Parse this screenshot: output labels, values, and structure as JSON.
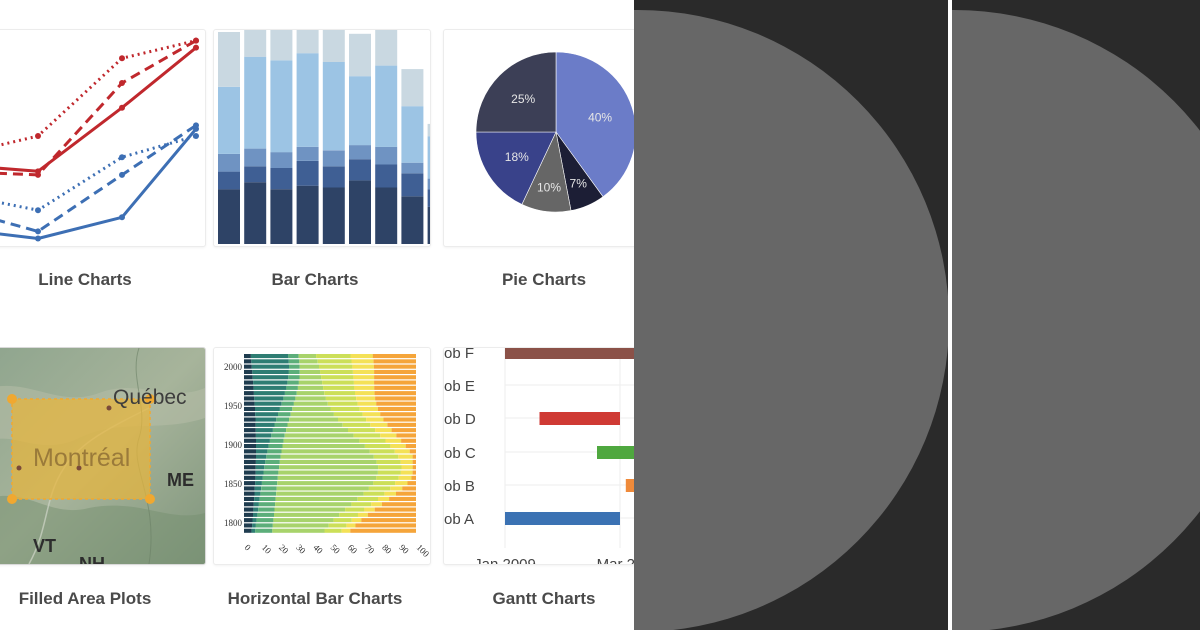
{
  "gallery": {
    "items": [
      {
        "label": "Line Charts"
      },
      {
        "label": "Bar Charts"
      },
      {
        "label": "Pie Charts"
      },
      {
        "label": "Filled Area Plots"
      },
      {
        "label": "Horizontal Bar Charts"
      },
      {
        "label": "Gantt Charts"
      }
    ]
  },
  "colors": {
    "red": "#c0282d",
    "blue": "#3d6fb4",
    "panel_bg": "#2a2a2a",
    "panel_disc": "#676767"
  },
  "chart_data": [
    {
      "type": "line",
      "x": [
        0,
        1,
        2,
        3
      ],
      "series": [
        {
          "name": "red-solid",
          "values": [
            22,
            20,
            38,
            55
          ]
        },
        {
          "name": "red-dash",
          "values": [
            20,
            19,
            45,
            57
          ]
        },
        {
          "name": "red-dot",
          "values": [
            24,
            30,
            52,
            57
          ]
        },
        {
          "name": "blue-solid",
          "values": [
            4,
            1,
            7,
            32
          ]
        },
        {
          "name": "blue-dash",
          "values": [
            10,
            3,
            19,
            33
          ]
        },
        {
          "name": "blue-dot",
          "values": [
            14,
            9,
            24,
            30
          ]
        }
      ],
      "ylim": [
        0,
        60
      ]
    },
    {
      "type": "bar",
      "categories": [
        "1",
        "2",
        "3",
        "4",
        "5",
        "6",
        "7",
        "8",
        "9"
      ],
      "series": [
        {
          "name": "s1",
          "values": [
            31,
            35,
            31,
            33,
            32,
            36,
            32,
            27,
            21
          ]
        },
        {
          "name": "s2",
          "values": [
            10,
            9,
            12,
            14,
            12,
            12,
            13,
            13,
            10
          ]
        },
        {
          "name": "s3",
          "values": [
            10,
            10,
            9,
            8,
            9,
            8,
            10,
            6,
            6
          ]
        },
        {
          "name": "s4",
          "values": [
            38,
            52,
            52,
            53,
            50,
            39,
            46,
            32,
            24
          ]
        },
        {
          "name": "s5",
          "values": [
            31,
            28,
            28,
            28,
            24,
            24,
            33,
            21,
            7
          ]
        }
      ],
      "ylim": [
        0,
        120
      ]
    },
    {
      "type": "pie",
      "labels": [
        "40%",
        "7%",
        "10%",
        "18%",
        "25%"
      ],
      "values": [
        40,
        7,
        10,
        18,
        25
      ]
    },
    {
      "type": "area",
      "place_labels": [
        "Québec",
        "Montréal",
        "ME",
        "VT",
        "NH"
      ]
    },
    {
      "type": "bar",
      "orientation": "horizontal",
      "y_ticks": [
        "2000",
        "1950",
        "1900",
        "1850",
        "1800"
      ],
      "x_ticks": [
        "0",
        "10",
        "20",
        "30",
        "40",
        "50",
        "60",
        "70",
        "80",
        "90",
        "100"
      ],
      "xlim": [
        0,
        100
      ]
    },
    {
      "type": "bar",
      "subtype": "gantt",
      "tasks": [
        {
          "name": "Job F",
          "label": "ob F",
          "start": 0,
          "end": 1.4
        },
        {
          "name": "Job E",
          "label": "ob E",
          "start": null,
          "end": null
        },
        {
          "name": "Job D",
          "label": "ob D",
          "start": 0.3,
          "end": 1.0
        },
        {
          "name": "Job C",
          "label": "ob C",
          "start": 0.8,
          "end": 1.4
        },
        {
          "name": "Job B",
          "label": "ob B",
          "start": 1.05,
          "end": 1.4
        },
        {
          "name": "Job A",
          "label": "ob A",
          "start": 0,
          "end": 1.0
        }
      ],
      "x_ticks": [
        "Jan 2009",
        "Mar 20"
      ]
    }
  ]
}
